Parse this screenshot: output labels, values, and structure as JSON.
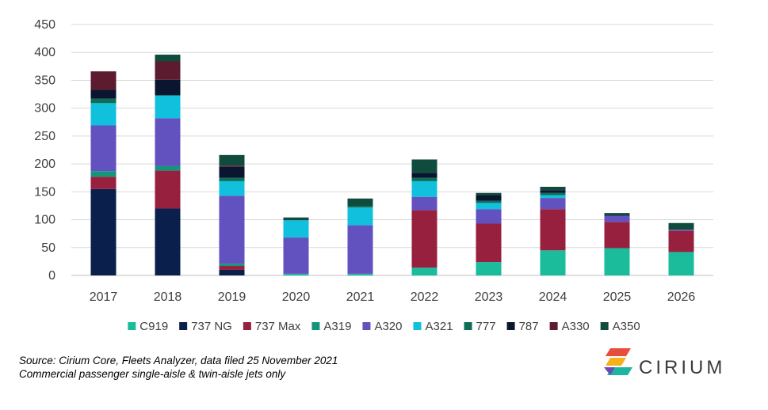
{
  "chart_data": {
    "type": "bar",
    "stacked": true,
    "title": "",
    "xlabel": "",
    "ylabel": "",
    "ylim": [
      0,
      450
    ],
    "yticks": [
      0,
      50,
      100,
      150,
      200,
      250,
      300,
      350,
      400,
      450
    ],
    "grid": true,
    "legend_position": "bottom",
    "categories": [
      "2017",
      "2018",
      "2019",
      "2020",
      "2021",
      "2022",
      "2023",
      "2024",
      "2025",
      "2026"
    ],
    "series": [
      {
        "name": "C919",
        "color": "#1ABC9C",
        "values": [
          0,
          0,
          0,
          3,
          3,
          14,
          24,
          45,
          49,
          42
        ]
      },
      {
        "name": "737 NG",
        "color": "#0B1F4D",
        "values": [
          155,
          120,
          10,
          0,
          0,
          0,
          0,
          0,
          0,
          0
        ]
      },
      {
        "name": "737 Max",
        "color": "#98203F",
        "values": [
          22,
          68,
          7,
          0,
          0,
          103,
          69,
          74,
          47,
          38
        ]
      },
      {
        "name": "A319",
        "color": "#14957A",
        "values": [
          10,
          8,
          4,
          0,
          0,
          0,
          0,
          0,
          0,
          0
        ]
      },
      {
        "name": "A320",
        "color": "#6252C0",
        "values": [
          82,
          86,
          122,
          65,
          87,
          24,
          26,
          20,
          11,
          2
        ]
      },
      {
        "name": "A321",
        "color": "#11C0DC",
        "values": [
          40,
          41,
          26,
          31,
          32,
          28,
          11,
          5,
          0,
          0
        ]
      },
      {
        "name": "777",
        "color": "#0F6E58",
        "values": [
          8,
          0,
          6,
          0,
          2,
          6,
          4,
          4,
          0,
          0
        ]
      },
      {
        "name": "787",
        "color": "#0A1530",
        "values": [
          16,
          28,
          20,
          0,
          0,
          9,
          10,
          5,
          2,
          0
        ]
      },
      {
        "name": "A330",
        "color": "#5C1B2E",
        "values": [
          33,
          33,
          2,
          0,
          0,
          0,
          0,
          0,
          0,
          0
        ]
      },
      {
        "name": "A350",
        "color": "#104C3E",
        "values": [
          0,
          12,
          19,
          5,
          14,
          24,
          4,
          6,
          3,
          12
        ]
      }
    ]
  },
  "footer": {
    "source_line1": "Source: Cirium Core, Fleets Analyzer, data filed 25 November 2021",
    "source_line2": "Commercial passenger single-aisle & twin-aisle jets only"
  },
  "logo": {
    "text": "CIRIUM",
    "colors": [
      "#E84C3D",
      "#F5B21B",
      "#1BB5A0",
      "#6C4AB6"
    ]
  }
}
